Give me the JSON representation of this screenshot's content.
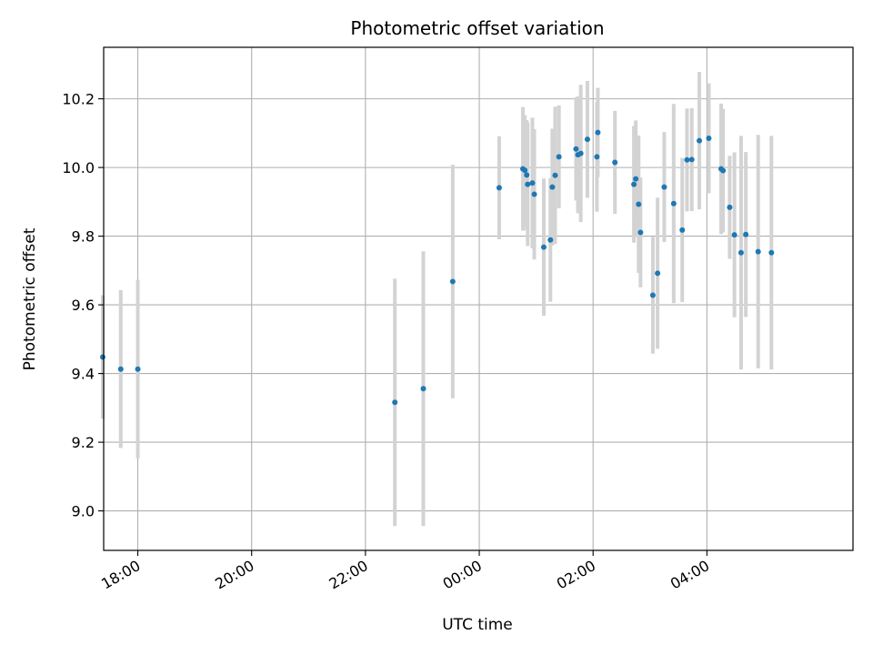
{
  "chart_data": {
    "type": "scatter",
    "title": "Photometric offset variation",
    "xlabel": "UTC time",
    "ylabel": "Photometric offset",
    "grid": true,
    "legend": "none",
    "xlim": [
      "17:24",
      "06:34"
    ],
    "ylim": [
      8.885,
      10.35
    ],
    "x_ticks": [
      "18:00",
      "20:00",
      "22:00",
      "00:00",
      "02:00",
      "04:00"
    ],
    "y_ticks": [
      "9.0",
      "9.2",
      "9.4",
      "9.6",
      "9.8",
      "10.0",
      "10.2"
    ],
    "day_break": "00:00",
    "colors": {
      "points": "#1f77b4",
      "error_bars": "#d3d3d3",
      "grid": "#b0b0b0"
    },
    "series": [
      {
        "x": [
          "17:23",
          "17:42",
          "18:00",
          "22:31",
          "23:01",
          "23:32",
          "00:21",
          "00:46",
          "00:48",
          "00:50",
          "00:51",
          "00:56",
          "00:58",
          "01:08",
          "01:15",
          "01:17",
          "01:20",
          "01:24",
          "01:42",
          "01:44",
          "01:47",
          "01:54",
          "02:04",
          "02:05",
          "02:23",
          "02:43",
          "02:45",
          "02:48",
          "02:50",
          "03:03",
          "03:08",
          "03:15",
          "03:25",
          "03:34",
          "03:39",
          "03:44",
          "03:52",
          "04:02",
          "04:15",
          "04:17",
          "04:24",
          "04:29",
          "04:36",
          "04:41",
          "04:54",
          "05:08"
        ],
        "y": [
          9.448,
          9.413,
          9.413,
          9.316,
          9.356,
          9.668,
          9.941,
          9.996,
          9.992,
          9.978,
          9.951,
          9.955,
          9.922,
          9.768,
          9.789,
          9.943,
          9.977,
          10.031,
          10.054,
          10.037,
          10.041,
          10.082,
          10.031,
          10.102,
          10.015,
          9.951,
          9.967,
          9.893,
          9.811,
          9.628,
          9.692,
          9.943,
          9.895,
          9.818,
          10.022,
          10.023,
          10.078,
          10.085,
          9.996,
          9.991,
          9.884,
          9.804,
          9.752,
          9.805,
          9.755,
          9.752
        ],
        "err": [
          0.18,
          0.23,
          0.26,
          0.36,
          0.4,
          0.34,
          0.15,
          0.18,
          0.16,
          0.16,
          0.18,
          0.19,
          0.19,
          0.2,
          0.18,
          0.17,
          0.2,
          0.15,
          0.15,
          0.17,
          0.2,
          0.17,
          0.16,
          0.13,
          0.15,
          0.17,
          0.17,
          0.2,
          0.16,
          0.17,
          0.22,
          0.16,
          0.29,
          0.21,
          0.15,
          0.15,
          0.2,
          0.16,
          0.19,
          0.18,
          0.15,
          0.24,
          0.34,
          0.24,
          0.34,
          0.34
        ]
      }
    ]
  }
}
